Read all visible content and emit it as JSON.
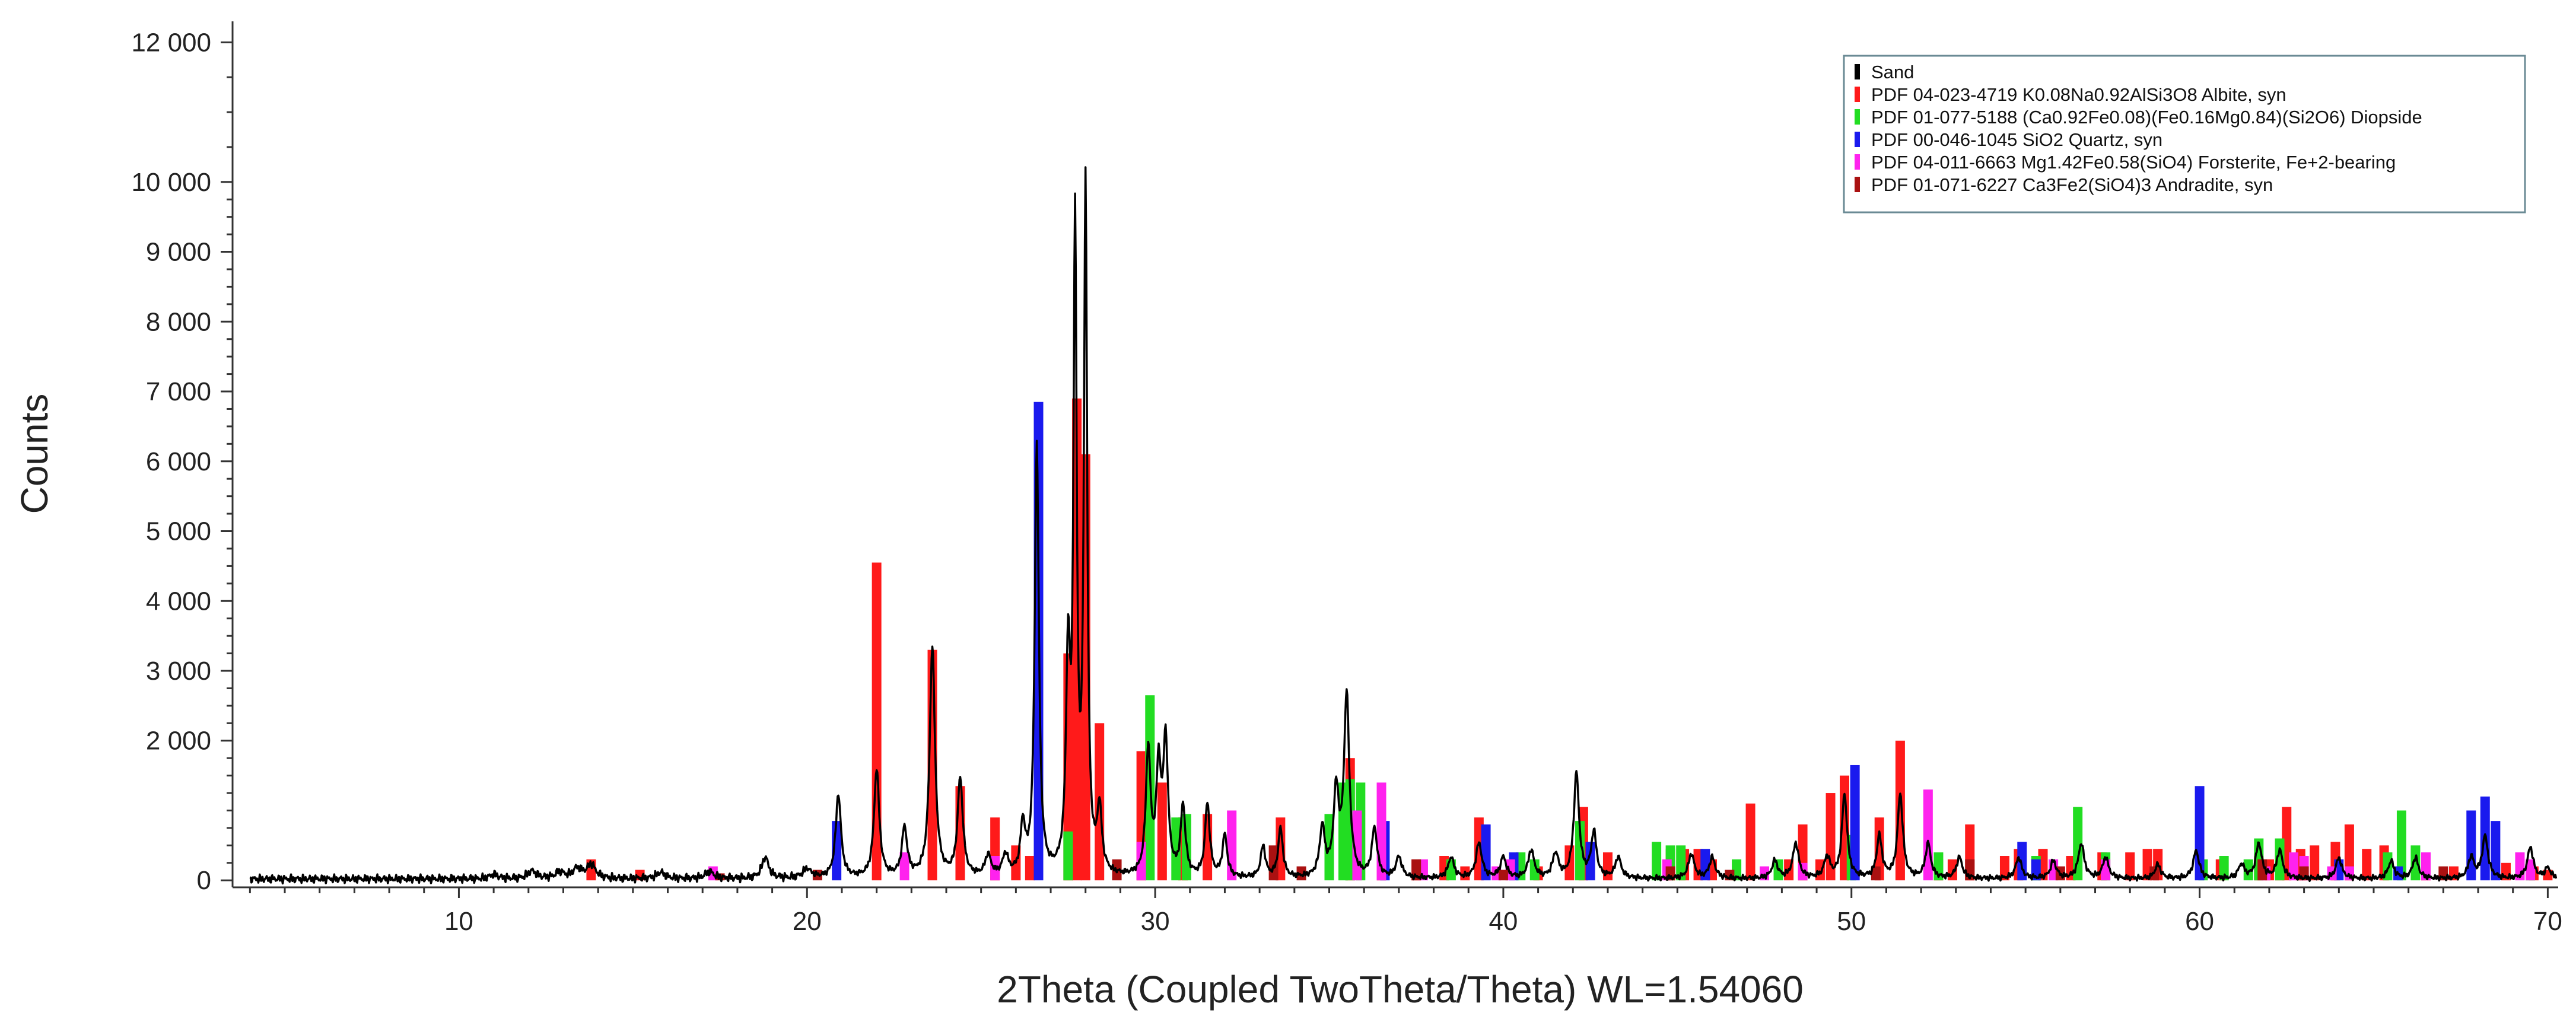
{
  "chart_data": {
    "type": "line",
    "title": "",
    "xlabel": "2Theta (Coupled TwoTheta/Theta) WL=1.54060",
    "ylabel": "Counts",
    "xlim": [
      3.5,
      70.3
    ],
    "ylim": [
      -100,
      12300
    ],
    "x_ticks": [
      10,
      20,
      30,
      40,
      50,
      60,
      70
    ],
    "y_ticks": [
      0,
      2000,
      3000,
      4000,
      5000,
      6000,
      7000,
      8000,
      9000,
      10000,
      12000
    ],
    "y_tick_labels": [
      "0",
      "2 000",
      "3 000",
      "4 000",
      "5 000",
      "6 000",
      "7 000",
      "8 000",
      "9 000",
      "10 000",
      "12 000"
    ],
    "y_minor_ticks": [
      250,
      500,
      750,
      1000,
      1250,
      1500,
      1750,
      2250,
      2500,
      2750,
      3250,
      3500,
      3750,
      4250,
      4500,
      4750,
      5250,
      5500,
      5750,
      6250,
      6500,
      6750,
      7250,
      7500,
      7750,
      8250,
      8500,
      8750,
      9250,
      9500,
      9750,
      10500,
      11000,
      11500
    ],
    "x_minor_step": 1,
    "grid": false,
    "legend_position": "top-right",
    "sample": {
      "name": "Sand",
      "color": "#000000",
      "peaks": [
        [
          11.0,
          60,
          0.15
        ],
        [
          12.1,
          110,
          0.15
        ],
        [
          12.9,
          90,
          0.15
        ],
        [
          13.4,
          140,
          0.15
        ],
        [
          13.8,
          200,
          0.15
        ],
        [
          15.8,
          90,
          0.15
        ],
        [
          17.2,
          100,
          0.15
        ],
        [
          18.8,
          300,
          0.12
        ],
        [
          20.0,
          130,
          0.15
        ],
        [
          20.9,
          1200,
          0.09
        ],
        [
          22.0,
          1550,
          0.09
        ],
        [
          22.8,
          700,
          0.09
        ],
        [
          23.6,
          3300,
          0.09
        ],
        [
          24.4,
          1400,
          0.09
        ],
        [
          25.2,
          300,
          0.1
        ],
        [
          25.7,
          300,
          0.1
        ],
        [
          26.2,
          700,
          0.08
        ],
        [
          26.6,
          6200,
          0.07
        ],
        [
          27.5,
          3000,
          0.07
        ],
        [
          27.7,
          9100,
          0.055
        ],
        [
          28.0,
          9800,
          0.055
        ],
        [
          28.4,
          900,
          0.08
        ],
        [
          29.8,
          1800,
          0.08
        ],
        [
          30.1,
          1500,
          0.08
        ],
        [
          30.3,
          1900,
          0.08
        ],
        [
          30.8,
          1000,
          0.08
        ],
        [
          31.5,
          1050,
          0.08
        ],
        [
          32.0,
          600,
          0.08
        ],
        [
          33.1,
          450,
          0.08
        ],
        [
          33.6,
          700,
          0.08
        ],
        [
          34.8,
          700,
          0.09
        ],
        [
          35.2,
          1200,
          0.09
        ],
        [
          35.5,
          2600,
          0.09
        ],
        [
          36.3,
          700,
          0.09
        ],
        [
          37.0,
          300,
          0.1
        ],
        [
          38.5,
          300,
          0.1
        ],
        [
          39.3,
          500,
          0.1
        ],
        [
          40.0,
          300,
          0.1
        ],
        [
          40.8,
          400,
          0.1
        ],
        [
          41.5,
          350,
          0.1
        ],
        [
          42.1,
          1500,
          0.09
        ],
        [
          42.6,
          650,
          0.09
        ],
        [
          43.3,
          300,
          0.1
        ],
        [
          45.4,
          350,
          0.1
        ],
        [
          46.0,
          300,
          0.1
        ],
        [
          47.8,
          250,
          0.1
        ],
        [
          48.4,
          500,
          0.1
        ],
        [
          49.3,
          300,
          0.1
        ],
        [
          49.8,
          1200,
          0.09
        ],
        [
          50.8,
          600,
          0.09
        ],
        [
          51.4,
          1200,
          0.09
        ],
        [
          52.2,
          500,
          0.09
        ],
        [
          53.1,
          300,
          0.1
        ],
        [
          54.8,
          300,
          0.1
        ],
        [
          55.8,
          250,
          0.1
        ],
        [
          56.6,
          500,
          0.1
        ],
        [
          57.3,
          300,
          0.1
        ],
        [
          58.8,
          200,
          0.1
        ],
        [
          59.9,
          400,
          0.1
        ],
        [
          61.2,
          200,
          0.1
        ],
        [
          61.7,
          500,
          0.1
        ],
        [
          62.3,
          400,
          0.1
        ],
        [
          64.0,
          300,
          0.1
        ],
        [
          65.5,
          250,
          0.1
        ],
        [
          66.2,
          300,
          0.1
        ],
        [
          67.8,
          300,
          0.1
        ],
        [
          68.2,
          600,
          0.1
        ],
        [
          69.5,
          450,
          0.1
        ],
        [
          70.0,
          150,
          0.1
        ]
      ]
    },
    "reference_patterns": [
      {
        "name": "PDF 04-023-4719 K0.08Na0.92AlSi3O8 Albite, syn",
        "color": "#ff1a1a",
        "sticks": [
          [
            13.8,
            300
          ],
          [
            15.2,
            150
          ],
          [
            22.0,
            4550
          ],
          [
            23.6,
            3300
          ],
          [
            24.4,
            1350
          ],
          [
            25.4,
            900
          ],
          [
            26.0,
            500
          ],
          [
            26.4,
            350
          ],
          [
            27.5,
            3250
          ],
          [
            27.75,
            6900
          ],
          [
            28.0,
            6100
          ],
          [
            28.4,
            2250
          ],
          [
            29.6,
            1850
          ],
          [
            30.2,
            1400
          ],
          [
            30.8,
            900
          ],
          [
            31.5,
            950
          ],
          [
            33.6,
            900
          ],
          [
            35.6,
            1750
          ],
          [
            36.5,
            600
          ],
          [
            37.5,
            300
          ],
          [
            38.3,
            350
          ],
          [
            38.9,
            200
          ],
          [
            39.3,
            900
          ],
          [
            41.0,
            200
          ],
          [
            41.9,
            500
          ],
          [
            42.3,
            1050
          ],
          [
            43.0,
            400
          ],
          [
            44.8,
            450
          ],
          [
            45.2,
            450
          ],
          [
            45.6,
            450
          ],
          [
            46.0,
            300
          ],
          [
            47.1,
            1100
          ],
          [
            48.2,
            300
          ],
          [
            48.6,
            800
          ],
          [
            49.1,
            300
          ],
          [
            49.4,
            1250
          ],
          [
            49.8,
            1500
          ],
          [
            50.8,
            900
          ],
          [
            51.4,
            2000
          ],
          [
            52.5,
            300
          ],
          [
            52.9,
            300
          ],
          [
            53.4,
            800
          ],
          [
            54.4,
            350
          ],
          [
            54.8,
            450
          ],
          [
            55.5,
            450
          ],
          [
            56.3,
            350
          ],
          [
            57.2,
            400
          ],
          [
            58.0,
            400
          ],
          [
            58.5,
            450
          ],
          [
            58.8,
            450
          ],
          [
            60.6,
            300
          ],
          [
            61.7,
            350
          ],
          [
            62.0,
            300
          ],
          [
            62.3,
            550
          ],
          [
            62.5,
            1050
          ],
          [
            62.9,
            450
          ],
          [
            63.3,
            500
          ],
          [
            63.9,
            550
          ],
          [
            64.3,
            800
          ],
          [
            64.8,
            450
          ],
          [
            65.3,
            500
          ],
          [
            66.5,
            300
          ],
          [
            67.3,
            200
          ],
          [
            68.8,
            250
          ],
          [
            69.6,
            200
          ],
          [
            70.0,
            150
          ]
        ]
      },
      {
        "name": "PDF 01-077-5188 (Ca0.92Fe0.08)(Fe0.16Mg0.84)(Si2O6) Diopside",
        "color": "#22dd22",
        "sticks": [
          [
            27.5,
            700
          ],
          [
            29.85,
            2650
          ],
          [
            30.6,
            900
          ],
          [
            30.9,
            950
          ],
          [
            35.0,
            950
          ],
          [
            35.4,
            1400
          ],
          [
            35.6,
            1450
          ],
          [
            35.9,
            1400
          ],
          [
            38.5,
            300
          ],
          [
            40.5,
            400
          ],
          [
            40.9,
            300
          ],
          [
            42.2,
            850
          ],
          [
            44.4,
            550
          ],
          [
            44.8,
            500
          ],
          [
            45.1,
            500
          ],
          [
            46.7,
            300
          ],
          [
            47.9,
            300
          ],
          [
            50.0,
            650
          ],
          [
            52.5,
            400
          ],
          [
            55.3,
            350
          ],
          [
            56.5,
            1050
          ],
          [
            57.3,
            400
          ],
          [
            60.1,
            300
          ],
          [
            60.7,
            350
          ],
          [
            61.4,
            300
          ],
          [
            61.7,
            600
          ],
          [
            62.3,
            600
          ],
          [
            65.4,
            400
          ],
          [
            65.8,
            1000
          ],
          [
            66.2,
            500
          ],
          [
            69.5,
            200
          ]
        ]
      },
      {
        "name": "PDF 00-046-1045 SiO2 Quartz, syn",
        "color": "#1a1aee",
        "sticks": [
          [
            20.85,
            850
          ],
          [
            26.65,
            6850
          ],
          [
            36.6,
            850
          ],
          [
            39.5,
            800
          ],
          [
            40.3,
            400
          ],
          [
            42.5,
            550
          ],
          [
            45.8,
            450
          ],
          [
            50.1,
            1650
          ],
          [
            54.9,
            550
          ],
          [
            55.3,
            300
          ],
          [
            60.0,
            1350
          ],
          [
            64.0,
            300
          ],
          [
            65.7,
            200
          ],
          [
            67.8,
            1000
          ],
          [
            68.2,
            1200
          ],
          [
            68.5,
            850
          ]
        ]
      },
      {
        "name": "PDF 04-011-6663 Mg1.42Fe0.58(SiO4) Forsterite, Fe+2-bearing",
        "color": "#ff22ee",
        "sticks": [
          [
            17.3,
            200
          ],
          [
            22.8,
            400
          ],
          [
            25.4,
            350
          ],
          [
            29.6,
            550
          ],
          [
            32.2,
            1000
          ],
          [
            35.8,
            1000
          ],
          [
            36.5,
            1400
          ],
          [
            37.7,
            300
          ],
          [
            39.8,
            200
          ],
          [
            40.2,
            300
          ],
          [
            44.7,
            300
          ],
          [
            47.5,
            200
          ],
          [
            48.6,
            250
          ],
          [
            52.2,
            1300
          ],
          [
            55.8,
            300
          ],
          [
            57.3,
            300
          ],
          [
            61.9,
            200
          ],
          [
            62.7,
            400
          ],
          [
            63.0,
            350
          ],
          [
            63.8,
            200
          ],
          [
            64.3,
            200
          ],
          [
            66.5,
            400
          ],
          [
            69.2,
            400
          ],
          [
            69.5,
            300
          ]
        ]
      },
      {
        "name": "PDF 01-071-6227 Ca3Fe2(SiO4)3 Andradite, syn",
        "color": "#aa1111",
        "sticks": [
          [
            17.5,
            100
          ],
          [
            20.3,
            150
          ],
          [
            28.9,
            300
          ],
          [
            33.4,
            500
          ],
          [
            34.2,
            200
          ],
          [
            37.5,
            300
          ],
          [
            40.0,
            150
          ],
          [
            44.8,
            200
          ],
          [
            46.5,
            150
          ],
          [
            50.7,
            200
          ],
          [
            53.4,
            300
          ],
          [
            56.0,
            200
          ],
          [
            58.7,
            200
          ],
          [
            61.8,
            300
          ],
          [
            63.0,
            200
          ],
          [
            67.0,
            200
          ]
        ]
      }
    ]
  }
}
